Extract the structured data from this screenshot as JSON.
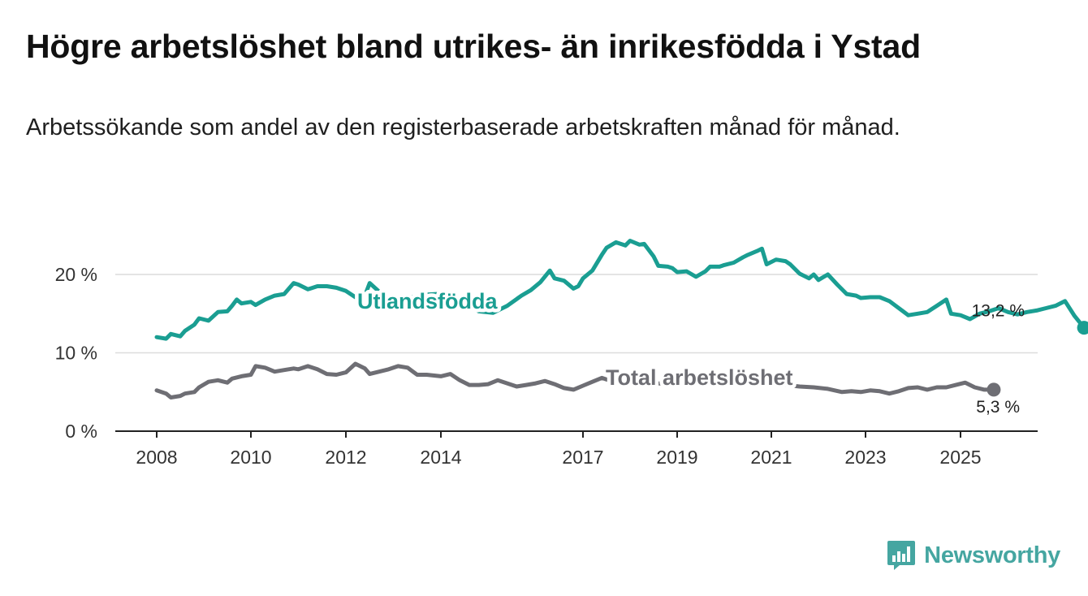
{
  "title": "Högre arbetslöshet bland utrikes- än inrikesfödda i Ystad",
  "subtitle": "Arbetssökande som andel av den registerbaserade arbetskraften månad för månad.",
  "brand": {
    "name": "Newsworthy",
    "color": "#45a6a1",
    "icon": "bar-chart-speech-bubble-icon"
  },
  "chart_data": {
    "type": "line",
    "title": "Högre arbetslöshet bland utrikes- än inrikesfödda i Ystad",
    "xlabel": "",
    "ylabel": "",
    "xlim": [
      2007.75,
      2026.6
    ],
    "ylim": [
      0,
      20
    ],
    "y_ticks": [
      0,
      10,
      20
    ],
    "y_tick_labels": [
      "0 %",
      "10 %",
      "20 %"
    ],
    "x_ticks": [
      2008,
      2010,
      2012,
      2014,
      2017,
      2019,
      2021,
      2023,
      2025
    ],
    "x_tick_labels": [
      "2008",
      "2010",
      "2012",
      "2014",
      "2017",
      "2019",
      "2021",
      "2023",
      "2025"
    ],
    "grid": "horizontal",
    "series": [
      {
        "name": "Utlandsfödda",
        "label": "Utlandsfödda",
        "color": "#1a9e92",
        "end_label": "13,2 %",
        "points": [
          [
            2008.0,
            12.0
          ],
          [
            2008.2,
            11.8
          ],
          [
            2008.3,
            12.4
          ],
          [
            2008.5,
            12.1
          ],
          [
            2008.6,
            12.8
          ],
          [
            2008.8,
            13.6
          ],
          [
            2008.9,
            14.4
          ],
          [
            2009.1,
            14.1
          ],
          [
            2009.3,
            15.2
          ],
          [
            2009.5,
            15.3
          ],
          [
            2009.6,
            16.0
          ],
          [
            2009.7,
            16.8
          ],
          [
            2009.8,
            16.3
          ],
          [
            2010.0,
            16.5
          ],
          [
            2010.1,
            16.1
          ],
          [
            2010.3,
            16.8
          ],
          [
            2010.5,
            17.3
          ],
          [
            2010.7,
            17.5
          ],
          [
            2010.9,
            18.9
          ],
          [
            2011.0,
            18.7
          ],
          [
            2011.2,
            18.1
          ],
          [
            2011.4,
            18.5
          ],
          [
            2011.6,
            18.5
          ],
          [
            2011.8,
            18.3
          ],
          [
            2012.0,
            17.9
          ],
          [
            2012.2,
            17.1
          ],
          [
            2012.4,
            17.3
          ],
          [
            2012.5,
            18.9
          ],
          [
            2012.7,
            17.8
          ],
          [
            2012.8,
            17.0
          ],
          [
            2013.0,
            16.5
          ],
          [
            2013.3,
            17.0
          ],
          [
            2013.6,
            17.4
          ],
          [
            2013.9,
            17.5
          ],
          [
            2014.2,
            17.2
          ],
          [
            2014.5,
            16.3
          ],
          [
            2014.8,
            15.3
          ],
          [
            2015.1,
            15.1
          ],
          [
            2015.4,
            16.0
          ],
          [
            2015.7,
            17.3
          ],
          [
            2015.9,
            18.0
          ],
          [
            2016.1,
            19.0
          ],
          [
            2016.3,
            20.5
          ],
          [
            2016.4,
            19.5
          ],
          [
            2016.6,
            19.2
          ],
          [
            2016.8,
            18.2
          ],
          [
            2016.9,
            18.5
          ],
          [
            2017.0,
            19.5
          ],
          [
            2017.2,
            20.5
          ],
          [
            2017.4,
            22.5
          ],
          [
            2017.5,
            23.4
          ],
          [
            2017.7,
            24.1
          ],
          [
            2017.9,
            23.7
          ],
          [
            2018.0,
            24.3
          ],
          [
            2018.2,
            23.8
          ],
          [
            2018.3,
            23.9
          ],
          [
            2018.5,
            22.3
          ],
          [
            2018.6,
            21.1
          ],
          [
            2018.8,
            21.0
          ],
          [
            2018.9,
            20.8
          ],
          [
            2019.0,
            20.3
          ],
          [
            2019.2,
            20.4
          ],
          [
            2019.4,
            19.7
          ],
          [
            2019.6,
            20.4
          ],
          [
            2019.7,
            21.0
          ],
          [
            2019.9,
            21.0
          ],
          [
            2020.0,
            21.2
          ],
          [
            2020.2,
            21.5
          ],
          [
            2020.4,
            22.2
          ],
          [
            2020.5,
            22.5
          ],
          [
            2020.7,
            23.0
          ],
          [
            2020.8,
            23.3
          ],
          [
            2020.9,
            21.3
          ],
          [
            2021.1,
            21.9
          ],
          [
            2021.3,
            21.7
          ],
          [
            2021.4,
            21.3
          ],
          [
            2021.6,
            20.1
          ],
          [
            2021.8,
            19.5
          ],
          [
            2021.9,
            20.0
          ],
          [
            2022.0,
            19.3
          ],
          [
            2022.2,
            20.0
          ],
          [
            2022.4,
            18.7
          ],
          [
            2022.6,
            17.5
          ],
          [
            2022.8,
            17.3
          ],
          [
            2022.9,
            17.0
          ],
          [
            2023.1,
            17.1
          ],
          [
            2023.3,
            17.1
          ],
          [
            2023.5,
            16.6
          ],
          [
            2023.7,
            15.7
          ],
          [
            2023.9,
            14.8
          ],
          [
            2024.1,
            15.0
          ],
          [
            2024.3,
            15.2
          ],
          [
            2024.5,
            16.0
          ],
          [
            2024.7,
            16.8
          ],
          [
            2024.8,
            15.0
          ],
          [
            2025.0,
            14.8
          ],
          [
            2025.2,
            14.3
          ],
          [
            2025.4,
            15.0
          ],
          [
            2025.6,
            15.3
          ],
          [
            2025.8,
            15.7
          ],
          [
            2026.0,
            15.2
          ],
          [
            2026.2,
            14.9
          ],
          [
            2026.4,
            15.2
          ],
          [
            2026.6,
            15.4
          ],
          [
            2026.8,
            15.7
          ],
          [
            2027.0,
            16.0
          ],
          [
            2027.2,
            16.6
          ],
          [
            2027.4,
            14.7
          ],
          [
            2027.6,
            13.2
          ]
        ]
      },
      {
        "name": "Total arbetslöshet",
        "label": "Total arbetslöshet",
        "color": "#6e6e74",
        "end_label": "5,3 %",
        "points": [
          [
            2008.0,
            5.2
          ],
          [
            2008.2,
            4.8
          ],
          [
            2008.3,
            4.3
          ],
          [
            2008.5,
            4.5
          ],
          [
            2008.6,
            4.8
          ],
          [
            2008.8,
            5.0
          ],
          [
            2008.9,
            5.6
          ],
          [
            2009.1,
            6.3
          ],
          [
            2009.3,
            6.5
          ],
          [
            2009.5,
            6.2
          ],
          [
            2009.6,
            6.7
          ],
          [
            2009.8,
            7.0
          ],
          [
            2010.0,
            7.2
          ],
          [
            2010.1,
            8.3
          ],
          [
            2010.3,
            8.1
          ],
          [
            2010.5,
            7.6
          ],
          [
            2010.7,
            7.8
          ],
          [
            2010.9,
            8.0
          ],
          [
            2011.0,
            7.9
          ],
          [
            2011.2,
            8.3
          ],
          [
            2011.4,
            7.9
          ],
          [
            2011.6,
            7.3
          ],
          [
            2011.8,
            7.2
          ],
          [
            2012.0,
            7.5
          ],
          [
            2012.2,
            8.6
          ],
          [
            2012.4,
            8.0
          ],
          [
            2012.5,
            7.3
          ],
          [
            2012.7,
            7.6
          ],
          [
            2012.9,
            7.9
          ],
          [
            2013.1,
            8.3
          ],
          [
            2013.3,
            8.1
          ],
          [
            2013.5,
            7.2
          ],
          [
            2013.7,
            7.2
          ],
          [
            2014.0,
            7.0
          ],
          [
            2014.2,
            7.3
          ],
          [
            2014.4,
            6.5
          ],
          [
            2014.6,
            5.9
          ],
          [
            2014.8,
            5.9
          ],
          [
            2015.0,
            6.0
          ],
          [
            2015.2,
            6.5
          ],
          [
            2015.4,
            6.1
          ],
          [
            2015.6,
            5.7
          ],
          [
            2015.8,
            5.9
          ],
          [
            2016.0,
            6.1
          ],
          [
            2016.2,
            6.4
          ],
          [
            2016.4,
            6.0
          ],
          [
            2016.6,
            5.5
          ],
          [
            2016.8,
            5.3
          ],
          [
            2017.0,
            5.8
          ],
          [
            2017.2,
            6.3
          ],
          [
            2017.4,
            6.8
          ],
          [
            2017.6,
            6.4
          ],
          [
            2017.8,
            6.5
          ],
          [
            2018.0,
            6.3
          ],
          [
            2018.3,
            6.3
          ],
          [
            2018.6,
            6.1
          ],
          [
            2018.9,
            6.0
          ],
          [
            2019.2,
            6.0
          ],
          [
            2019.5,
            6.1
          ],
          [
            2019.8,
            6.2
          ],
          [
            2020.1,
            6.1
          ],
          [
            2020.4,
            6.2
          ],
          [
            2020.7,
            6.1
          ],
          [
            2021.0,
            6.0
          ],
          [
            2021.3,
            5.9
          ],
          [
            2021.6,
            5.7
          ],
          [
            2021.9,
            5.6
          ],
          [
            2022.2,
            5.4
          ],
          [
            2022.5,
            5.0
          ],
          [
            2022.7,
            5.1
          ],
          [
            2022.9,
            5.0
          ],
          [
            2023.1,
            5.2
          ],
          [
            2023.3,
            5.1
          ],
          [
            2023.5,
            4.8
          ],
          [
            2023.7,
            5.1
          ],
          [
            2023.9,
            5.5
          ],
          [
            2024.1,
            5.6
          ],
          [
            2024.3,
            5.3
          ],
          [
            2024.5,
            5.6
          ],
          [
            2024.7,
            5.6
          ],
          [
            2024.9,
            5.9
          ],
          [
            2025.1,
            6.2
          ],
          [
            2025.3,
            5.6
          ],
          [
            2025.5,
            5.3
          ],
          [
            2025.7,
            5.3
          ]
        ]
      }
    ]
  }
}
